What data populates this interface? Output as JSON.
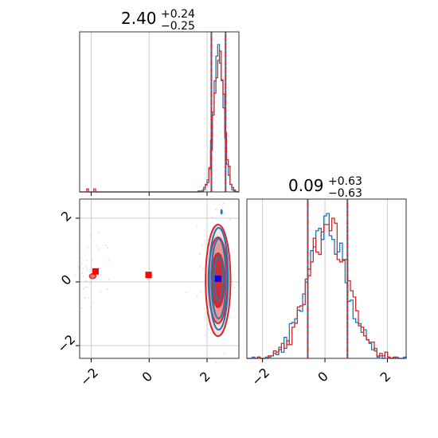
{
  "chart_data": [
    {
      "panel": "hist-param1",
      "type": "histogram",
      "title": {
        "value": "2.40",
        "plus": "+0.24",
        "minus": "−0.25"
      },
      "xlim": [
        -2.4,
        3.1
      ],
      "quantiles_dashed": [
        2.15,
        2.64
      ],
      "series": [
        {
          "name": "",
          "color": "#1f77b4",
          "peak_center": 2.4,
          "sigma": 0.17,
          "outliers": []
        },
        {
          "name": "",
          "color": "#d62728",
          "peak_center": 2.42,
          "sigma": 0.18,
          "outliers": [
            -2.1,
            -1.9
          ]
        }
      ],
      "grid": true
    },
    {
      "panel": "hist-param2",
      "type": "histogram",
      "title": {
        "value": "0.09",
        "plus": "+0.63",
        "minus": "−0.63"
      },
      "xlim": [
        -2.5,
        2.6
      ],
      "quantiles_dashed": [
        -0.55,
        0.72
      ],
      "x_ticks": [
        "−2",
        "0",
        "2"
      ],
      "series": [
        {
          "name": "",
          "color": "#1f77b4",
          "peak_center": 0.05,
          "sigma": 0.65
        },
        {
          "name": "",
          "color": "#d62728",
          "peak_center": 0.1,
          "sigma": 0.65
        }
      ],
      "grid": true
    },
    {
      "panel": "joint-param1-param2",
      "type": "contour",
      "xlim": [
        -2.4,
        3.1
      ],
      "ylim": [
        -2.4,
        2.6
      ],
      "x_ticks": [
        "−2",
        "0",
        "2"
      ],
      "y_ticks": [
        "−2",
        "0",
        "2"
      ],
      "markers": [
        {
          "x": -1.85,
          "y": 0.33,
          "color": "#ff0000"
        },
        {
          "x": -0.02,
          "y": 0.22,
          "color": "#ff0000"
        },
        {
          "x": 2.38,
          "y": 0.1,
          "color": "#0000ff"
        }
      ],
      "contours": [
        {
          "color": "#d62728",
          "center": [
            2.38,
            0.05
          ],
          "radii": [
            [
              0.22,
              0.85
            ],
            [
              0.33,
              1.35
            ],
            [
              0.43,
              1.75
            ]
          ]
        },
        {
          "color": "#1f77b4",
          "center": [
            2.4,
            0.1
          ],
          "radii": [
            [
              0.15,
              0.7
            ],
            [
              0.25,
              1.25
            ],
            [
              0.33,
              1.6
            ]
          ]
        }
      ],
      "grid": true
    }
  ]
}
